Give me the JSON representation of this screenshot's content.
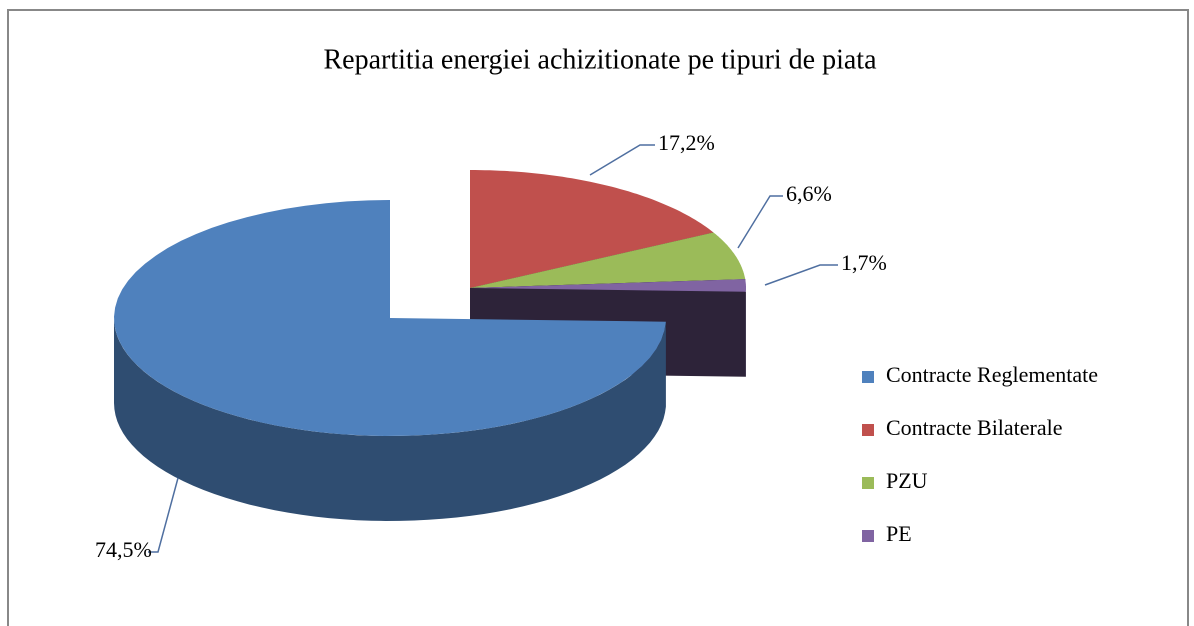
{
  "chart_data": {
    "type": "pie",
    "title": "Repartitia energiei achizitionate pe tipuri de piata",
    "categories": [
      "Contracte Reglementate",
      "Contracte Bilaterale",
      "PZU",
      "PE"
    ],
    "values": [
      74.5,
      17.2,
      6.6,
      1.7
    ],
    "value_labels": [
      "74,5%",
      "17,2%",
      "6,6%",
      "1,7%"
    ],
    "colors": [
      "#4f81bd",
      "#c0504d",
      "#9bbb59",
      "#8064a2"
    ],
    "legend": "right"
  }
}
